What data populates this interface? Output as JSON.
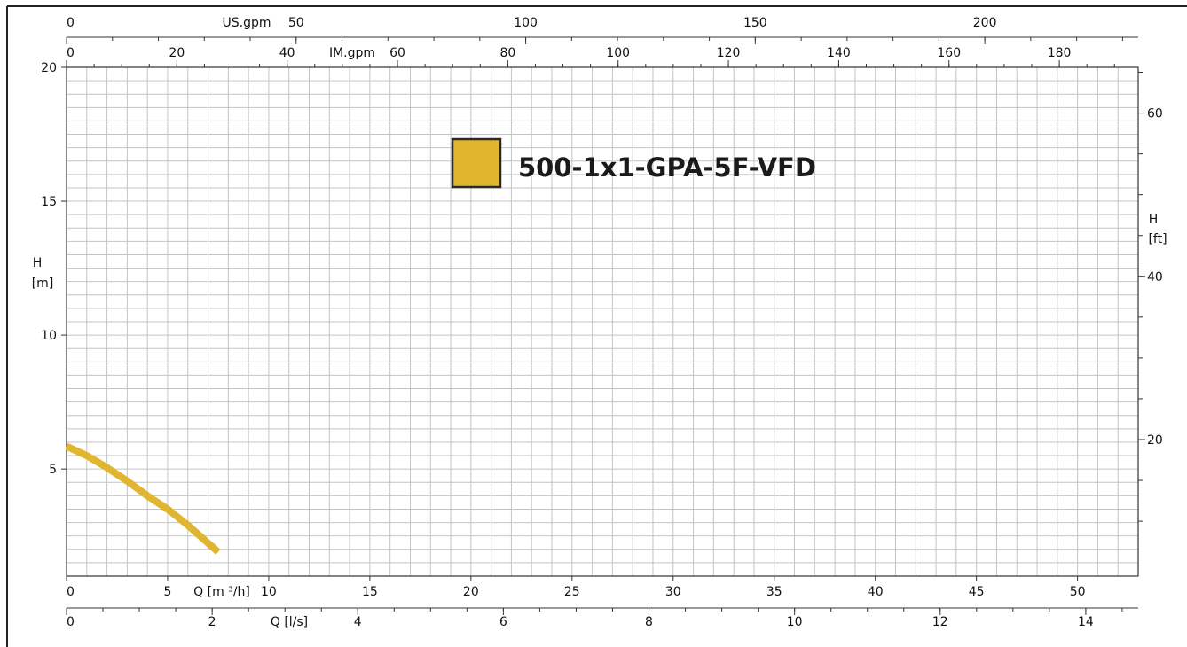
{
  "chart_data": {
    "type": "line",
    "series": [
      {
        "name": "500-1x1-GPA-5F-VFD",
        "color": "#e0b52f",
        "x": [
          0,
          1,
          2,
          3,
          4,
          5,
          6,
          7.5
        ],
        "y": [
          5.85,
          5.5,
          5.05,
          4.55,
          4.0,
          3.5,
          2.9,
          1.9
        ]
      }
    ],
    "x_axis_m3h": {
      "label": "Q [m ³/h]",
      "range": [
        0,
        53
      ],
      "ticks": [
        0,
        5,
        10,
        15,
        20,
        25,
        30,
        35,
        40,
        45,
        50
      ],
      "tick_labels": [
        "0",
        "5",
        "10",
        "15",
        "20",
        "25",
        "30",
        "35",
        "40",
        "45",
        "50"
      ]
    },
    "x_axis_ls": {
      "label": "Q [l/s]",
      "range": [
        0,
        14.72
      ],
      "ticks": [
        0,
        2,
        4,
        6,
        8,
        10,
        12,
        14
      ],
      "tick_labels": [
        "0",
        "2",
        "4",
        "6",
        "8",
        "10",
        "12",
        "14"
      ]
    },
    "x_axis_usgpm": {
      "label": "US.gpm",
      "range": [
        0,
        233.4
      ],
      "ticks": [
        0,
        50,
        100,
        150,
        200
      ],
      "tick_labels": [
        "0",
        "50",
        "100",
        "150",
        "200"
      ]
    },
    "x_axis_imgpm": {
      "label": "IM.gpm",
      "range": [
        0,
        194.3
      ],
      "ticks": [
        0,
        20,
        40,
        60,
        80,
        100,
        120,
        140,
        160,
        180
      ],
      "tick_labels": [
        "0",
        "20",
        "40",
        "60",
        "80",
        "100",
        "120",
        "140",
        "160",
        "180"
      ]
    },
    "y_axis_m": {
      "label": "H",
      "unit": "[m]",
      "range": [
        1,
        20
      ],
      "ticks": [
        5,
        10,
        15,
        20
      ],
      "tick_labels": [
        "5",
        "10",
        "15",
        "20"
      ]
    },
    "y_axis_ft": {
      "label": "H",
      "unit": "[ft]",
      "range": [
        3.28,
        65.6
      ],
      "ticks": [
        20,
        40,
        60
      ],
      "tick_labels": [
        "20",
        "40",
        "60"
      ]
    },
    "grid": true,
    "legend_position": "top-center",
    "legend_label": "500-1x1-GPA-5F-VFD"
  }
}
